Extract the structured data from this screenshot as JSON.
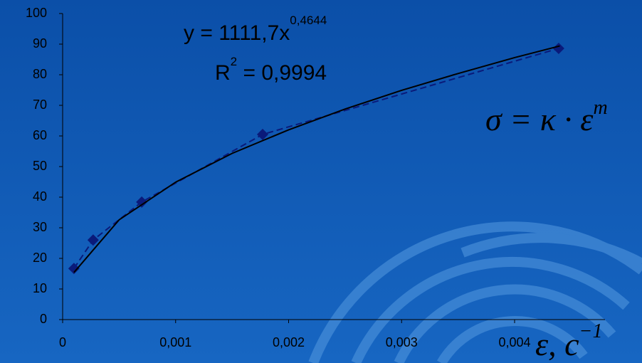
{
  "chart_data": {
    "type": "scatter",
    "equation": {
      "text": "y = 1111,7x",
      "exponent": "0,4644"
    },
    "r_squared": {
      "base": "R",
      "power": "2",
      "text": " = 0,9994"
    },
    "formula": {
      "text": "σ = κ · ε",
      "exponent": "m"
    },
    "x_label": {
      "text": "ε, c",
      "exponent": "−1"
    },
    "series": [
      {
        "color": "#0a1a7a",
        "style": "dashed",
        "marker": "diamond",
        "x": [
          0.0001,
          0.00027,
          0.0007,
          0.00177,
          0.00439
        ],
        "values": [
          16.7,
          26,
          38.4,
          60.5,
          88.6
        ]
      },
      {
        "color": "#000000",
        "style": "solid",
        "marker": "none",
        "x": [
          0.0001,
          0.0005,
          0.001,
          0.0015,
          0.002,
          0.0025,
          0.003,
          0.0035,
          0.004,
          0.0044
        ],
        "values": [
          15.4,
          32.6,
          44.9,
          54.3,
          62.0,
          68.8,
          74.9,
          80.4,
          85.6,
          89.4
        ]
      }
    ],
    "xlim": [
      0,
      0.0048
    ],
    "ylim": [
      0,
      100
    ],
    "xticks": [
      0,
      {
        "value": 0.001,
        "label": "0,001"
      },
      {
        "value": 0.002,
        "label": "0,002"
      },
      {
        "value": 0.003,
        "label": "0,003"
      },
      {
        "value": 0.004,
        "label": "0,004"
      }
    ],
    "yticks": [
      0,
      10,
      20,
      30,
      40,
      50,
      60,
      70,
      80,
      90,
      100
    ]
  }
}
